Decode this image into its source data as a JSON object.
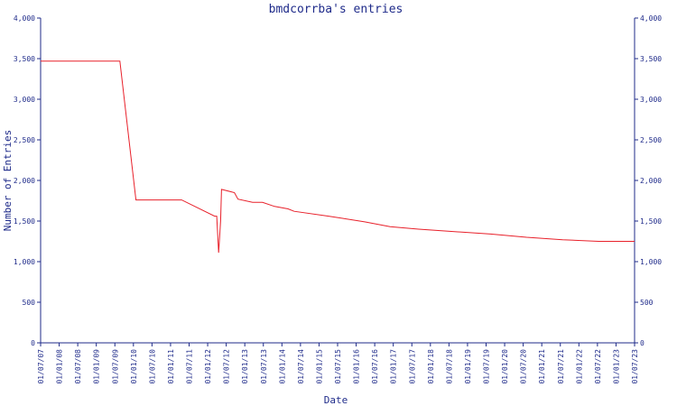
{
  "chart_data": {
    "type": "line",
    "title": "bmdcorrba's entries",
    "xlabel": "Date",
    "ylabel": "Number of Entries",
    "ylim": [
      0,
      4000
    ],
    "xlim": [
      "2007-01-01",
      "2023-07-01"
    ],
    "y_ticks": [
      0,
      500,
      1000,
      1500,
      2000,
      2500,
      3000,
      3500,
      4000
    ],
    "y_tick_labels": [
      "0",
      "500",
      "1,000",
      "1,500",
      "2,000",
      "2,500",
      "3,000",
      "3,500",
      "4,000"
    ],
    "x_tick_labels": [
      "01/07/07",
      "01/01/08",
      "01/07/08",
      "01/01/09",
      "01/07/09",
      "01/01/10",
      "01/07/10",
      "01/01/11",
      "01/07/11",
      "01/01/12",
      "01/07/12",
      "01/01/13",
      "01/07/13",
      "01/01/14",
      "01/07/14",
      "01/01/15",
      "01/07/15",
      "01/01/16",
      "01/07/16",
      "01/01/17",
      "01/07/17",
      "01/01/18",
      "01/07/18",
      "01/01/19",
      "01/07/19",
      "01/01/20",
      "01/07/20",
      "01/01/21",
      "01/07/21",
      "01/01/22",
      "01/07/22",
      "01/01/23",
      "01/07/23"
    ],
    "grid": false,
    "series": [
      {
        "name": "",
        "color": "#e8202a",
        "points": [
          [
            "2007-01-01",
            3470
          ],
          [
            "2009-03-15",
            3470
          ],
          [
            "2009-08-25",
            1760
          ],
          [
            "2010-12-01",
            1760
          ],
          [
            "2011-11-01",
            1560
          ],
          [
            "2011-11-22",
            1560
          ],
          [
            "2011-12-12",
            1110
          ],
          [
            "2012-01-01",
            1500
          ],
          [
            "2012-01-10",
            1890
          ],
          [
            "2012-05-20",
            1850
          ],
          [
            "2012-06-25",
            1770
          ],
          [
            "2012-11-20",
            1730
          ],
          [
            "2013-03-01",
            1730
          ],
          [
            "2013-07-01",
            1680
          ],
          [
            "2013-11-15",
            1650
          ],
          [
            "2014-01-15",
            1620
          ],
          [
            "2015-01-01",
            1560
          ],
          [
            "2016-01-01",
            1490
          ],
          [
            "2016-09-15",
            1430
          ],
          [
            "2017-07-01",
            1400
          ],
          [
            "2018-07-01",
            1370
          ],
          [
            "2019-07-01",
            1340
          ],
          [
            "2020-07-01",
            1300
          ],
          [
            "2021-07-01",
            1270
          ],
          [
            "2022-07-01",
            1250
          ],
          [
            "2023-07-01",
            1250
          ]
        ]
      }
    ]
  }
}
